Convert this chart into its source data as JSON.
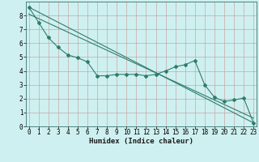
{
  "xlabel": "Humidex (Indice chaleur)",
  "x": [
    0,
    1,
    2,
    3,
    4,
    5,
    6,
    7,
    8,
    9,
    10,
    11,
    12,
    13,
    14,
    15,
    16,
    17,
    18,
    19,
    20,
    21,
    22,
    23
  ],
  "line1": [
    8.6,
    7.5,
    6.4,
    5.7,
    5.15,
    4.95,
    4.65,
    3.65,
    3.65,
    3.75,
    3.75,
    3.75,
    3.65,
    3.75,
    4.0,
    4.3,
    4.45,
    4.75,
    3.0,
    2.1,
    1.8,
    1.9,
    2.05,
    0.25
  ],
  "trend1_x": [
    0,
    23
  ],
  "trend1_y": [
    8.6,
    0.25
  ],
  "trend2_x": [
    0,
    23
  ],
  "trend2_y": [
    8.1,
    0.6
  ],
  "line_color": "#2e7d6e",
  "bg_color": "#cff0f0",
  "grid_color_major": "#c8a0a0",
  "grid_color_minor": "#c8d8d8",
  "ylim": [
    0,
    9
  ],
  "yticks": [
    0,
    1,
    2,
    3,
    4,
    5,
    6,
    7,
    8
  ],
  "xticks": [
    0,
    1,
    2,
    3,
    4,
    5,
    6,
    7,
    8,
    9,
    10,
    11,
    12,
    13,
    14,
    15,
    16,
    17,
    18,
    19,
    20,
    21,
    22,
    23
  ],
  "marker": "D",
  "marker_size": 2.0,
  "linewidth": 0.8,
  "tick_fontsize": 5.5,
  "xlabel_fontsize": 6.5
}
